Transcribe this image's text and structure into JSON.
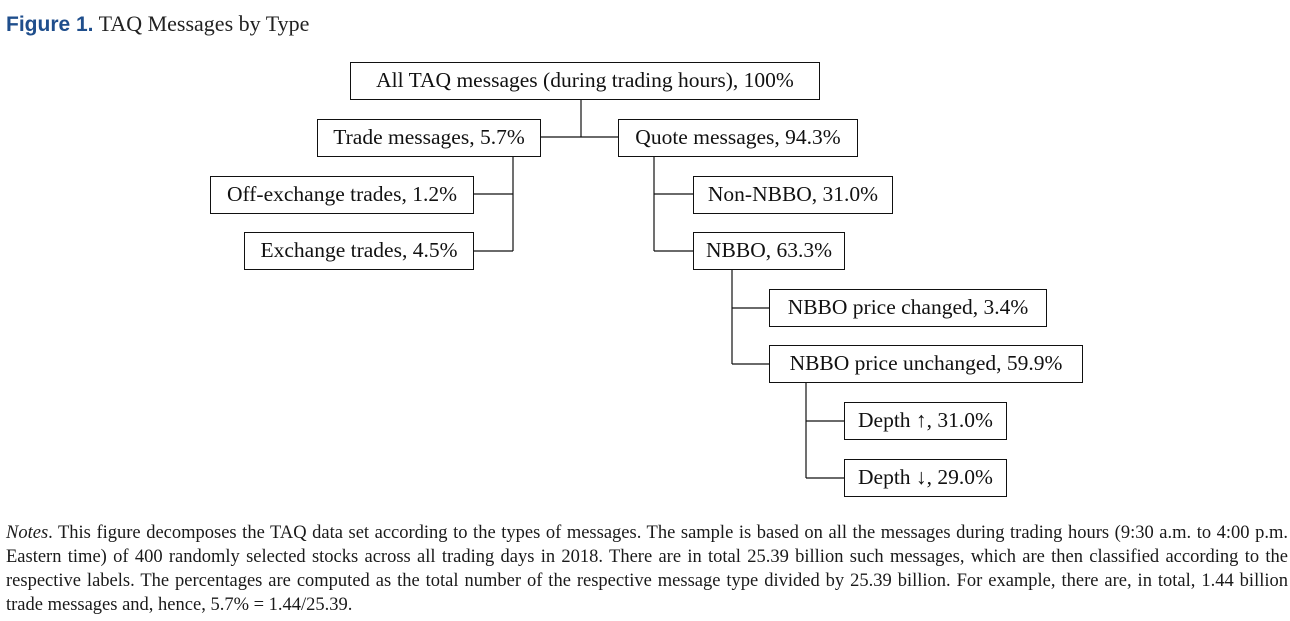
{
  "figure": {
    "label": "Figure 1.",
    "caption": "TAQ Messages by Type"
  },
  "diagram": {
    "nodes": {
      "all": "All TAQ messages (during trading hours), 100%",
      "trade": "Trade messages, 5.7%",
      "quote": "Quote messages, 94.3%",
      "off_exchange": "Off-exchange trades, 1.2%",
      "exchange": "Exchange trades, 4.5%",
      "non_nbbo": "Non-NBBO, 31.0%",
      "nbbo": "NBBO, 63.3%",
      "nbbo_changed": "NBBO price changed, 3.4%",
      "nbbo_unchanged": "NBBO price unchanged, 59.9%",
      "depth_up": "Depth ↑, 31.0%",
      "depth_down": "Depth ↓, 29.0%"
    }
  },
  "notes": {
    "label": "Notes",
    "text": ". This figure decomposes the TAQ data set according to the types of messages. The sample is based on all the messages during trading hours (9:30 a.m. to 4:00 p.m. Eastern time) of 400 randomly selected stocks across all trading days in 2018. There are in total 25.39 billion such messages, which are then classified according to the respective labels. The percentages are computed as the total number of the respective message type divided by 25.39 billion. For example, there are, in total, 1.44 billion trade messages and, hence, 5.7% = 1.44/25.39."
  }
}
